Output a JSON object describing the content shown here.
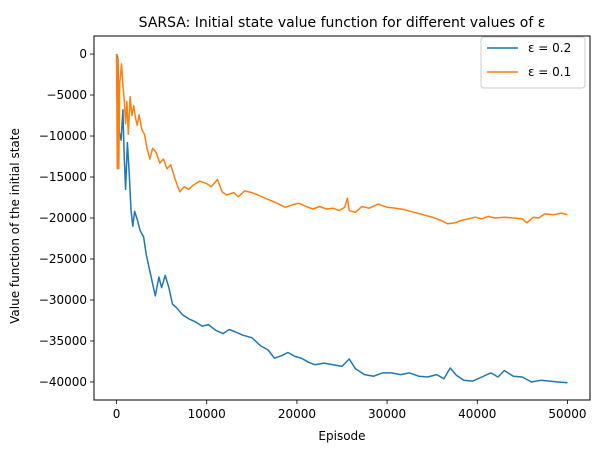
{
  "chart_data": {
    "type": "line",
    "title": "SARSA: Initial state value function for different values of ε",
    "xlabel": "Episode",
    "ylabel": "Value function of the initial state",
    "xlim": [
      -2500,
      52500
    ],
    "ylim": [
      -42200,
      2200
    ],
    "xticks": [
      0,
      10000,
      20000,
      30000,
      40000,
      50000
    ],
    "xtick_labels": [
      "0",
      "10000",
      "20000",
      "30000",
      "40000",
      "50000"
    ],
    "yticks": [
      0,
      -5000,
      -10000,
      -15000,
      -20000,
      -25000,
      -30000,
      -35000,
      -40000
    ],
    "ytick_labels": [
      "0",
      "−5000",
      "−10000",
      "−15000",
      "−20000",
      "−25000",
      "−30000",
      "−35000",
      "−40000"
    ],
    "grid": false,
    "legend_position": "top-right",
    "series": [
      {
        "name": "ε = 0.2",
        "color": "#1f77b4",
        "points": [
          [
            0,
            0
          ],
          [
            150,
            -500
          ],
          [
            300,
            -9500
          ],
          [
            500,
            -10500
          ],
          [
            700,
            -6800
          ],
          [
            850,
            -12500
          ],
          [
            1000,
            -16500
          ],
          [
            1200,
            -10800
          ],
          [
            1400,
            -14500
          ],
          [
            1600,
            -19000
          ],
          [
            1800,
            -21000
          ],
          [
            2000,
            -19200
          ],
          [
            2300,
            -20200
          ],
          [
            2600,
            -21500
          ],
          [
            3000,
            -22300
          ],
          [
            3300,
            -24500
          ],
          [
            3600,
            -26000
          ],
          [
            4000,
            -28000
          ],
          [
            4300,
            -29500
          ],
          [
            4700,
            -27200
          ],
          [
            5000,
            -28500
          ],
          [
            5400,
            -27000
          ],
          [
            5800,
            -28500
          ],
          [
            6200,
            -30500
          ],
          [
            6700,
            -31000
          ],
          [
            7300,
            -31800
          ],
          [
            8000,
            -32300
          ],
          [
            8800,
            -32700
          ],
          [
            9500,
            -33200
          ],
          [
            10200,
            -33000
          ],
          [
            11000,
            -33700
          ],
          [
            11800,
            -34100
          ],
          [
            12500,
            -33600
          ],
          [
            13200,
            -33900
          ],
          [
            14000,
            -34300
          ],
          [
            15000,
            -34600
          ],
          [
            16000,
            -35600
          ],
          [
            16800,
            -36100
          ],
          [
            17500,
            -37100
          ],
          [
            18300,
            -36800
          ],
          [
            19000,
            -36400
          ],
          [
            19800,
            -36900
          ],
          [
            20500,
            -37100
          ],
          [
            21300,
            -37600
          ],
          [
            22000,
            -37900
          ],
          [
            23000,
            -37700
          ],
          [
            24000,
            -37900
          ],
          [
            25000,
            -38100
          ],
          [
            25800,
            -37200
          ],
          [
            26500,
            -38400
          ],
          [
            27500,
            -39100
          ],
          [
            28500,
            -39300
          ],
          [
            29500,
            -38900
          ],
          [
            30500,
            -38900
          ],
          [
            31500,
            -39100
          ],
          [
            32500,
            -38900
          ],
          [
            33500,
            -39300
          ],
          [
            34500,
            -39400
          ],
          [
            35500,
            -39100
          ],
          [
            36300,
            -39600
          ],
          [
            37000,
            -38300
          ],
          [
            37700,
            -39200
          ],
          [
            38500,
            -39800
          ],
          [
            39500,
            -39900
          ],
          [
            40500,
            -39400
          ],
          [
            41500,
            -38900
          ],
          [
            42300,
            -39400
          ],
          [
            43000,
            -38600
          ],
          [
            44000,
            -39300
          ],
          [
            45000,
            -39400
          ],
          [
            46000,
            -40000
          ],
          [
            47000,
            -39800
          ],
          [
            48000,
            -39900
          ],
          [
            49000,
            -40000
          ],
          [
            50000,
            -40100
          ]
        ]
      },
      {
        "name": "ε = 0.1",
        "color": "#ff7f0e",
        "points": [
          [
            0,
            0
          ],
          [
            80,
            -14000
          ],
          [
            150,
            -500
          ],
          [
            250,
            -14000
          ],
          [
            350,
            -3500
          ],
          [
            450,
            -2500
          ],
          [
            550,
            -1200
          ],
          [
            700,
            -3800
          ],
          [
            850,
            -5500
          ],
          [
            1000,
            -8500
          ],
          [
            1150,
            -5800
          ],
          [
            1300,
            -9800
          ],
          [
            1500,
            -5200
          ],
          [
            1700,
            -7500
          ],
          [
            1900,
            -6300
          ],
          [
            2100,
            -7800
          ],
          [
            2300,
            -8700
          ],
          [
            2500,
            -7400
          ],
          [
            2800,
            -9200
          ],
          [
            3100,
            -9800
          ],
          [
            3400,
            -11600
          ],
          [
            3700,
            -12800
          ],
          [
            4000,
            -11500
          ],
          [
            4400,
            -12000
          ],
          [
            4800,
            -13300
          ],
          [
            5200,
            -12800
          ],
          [
            5600,
            -14000
          ],
          [
            6000,
            -13500
          ],
          [
            6500,
            -15300
          ],
          [
            7000,
            -16800
          ],
          [
            7500,
            -16200
          ],
          [
            8000,
            -16500
          ],
          [
            8500,
            -16000
          ],
          [
            9200,
            -15500
          ],
          [
            10000,
            -15800
          ],
          [
            10500,
            -16200
          ],
          [
            11200,
            -15300
          ],
          [
            11700,
            -16800
          ],
          [
            12200,
            -17200
          ],
          [
            13000,
            -16900
          ],
          [
            13500,
            -17400
          ],
          [
            14200,
            -16700
          ],
          [
            15000,
            -16900
          ],
          [
            15700,
            -17200
          ],
          [
            16500,
            -17600
          ],
          [
            17200,
            -17900
          ],
          [
            18000,
            -18300
          ],
          [
            18700,
            -18700
          ],
          [
            19500,
            -18400
          ],
          [
            20200,
            -18200
          ],
          [
            21000,
            -18600
          ],
          [
            21800,
            -18900
          ],
          [
            22500,
            -18600
          ],
          [
            23300,
            -18900
          ],
          [
            24000,
            -18800
          ],
          [
            24700,
            -19100
          ],
          [
            25300,
            -18700
          ],
          [
            25600,
            -17600
          ],
          [
            25800,
            -19100
          ],
          [
            26500,
            -19300
          ],
          [
            27200,
            -18600
          ],
          [
            28000,
            -18800
          ],
          [
            29000,
            -18300
          ],
          [
            30000,
            -18700
          ],
          [
            31000,
            -18800
          ],
          [
            32000,
            -19000
          ],
          [
            33000,
            -19300
          ],
          [
            34000,
            -19600
          ],
          [
            35000,
            -19900
          ],
          [
            36000,
            -20300
          ],
          [
            36700,
            -20700
          ],
          [
            37500,
            -20600
          ],
          [
            38200,
            -20300
          ],
          [
            39000,
            -20100
          ],
          [
            39800,
            -19900
          ],
          [
            40500,
            -20100
          ],
          [
            41200,
            -19800
          ],
          [
            42000,
            -20000
          ],
          [
            43000,
            -19900
          ],
          [
            44000,
            -20000
          ],
          [
            45000,
            -20100
          ],
          [
            45500,
            -20600
          ],
          [
            46200,
            -19900
          ],
          [
            46800,
            -20000
          ],
          [
            47500,
            -19500
          ],
          [
            48500,
            -19600
          ],
          [
            49300,
            -19400
          ],
          [
            50000,
            -19600
          ]
        ]
      }
    ]
  }
}
